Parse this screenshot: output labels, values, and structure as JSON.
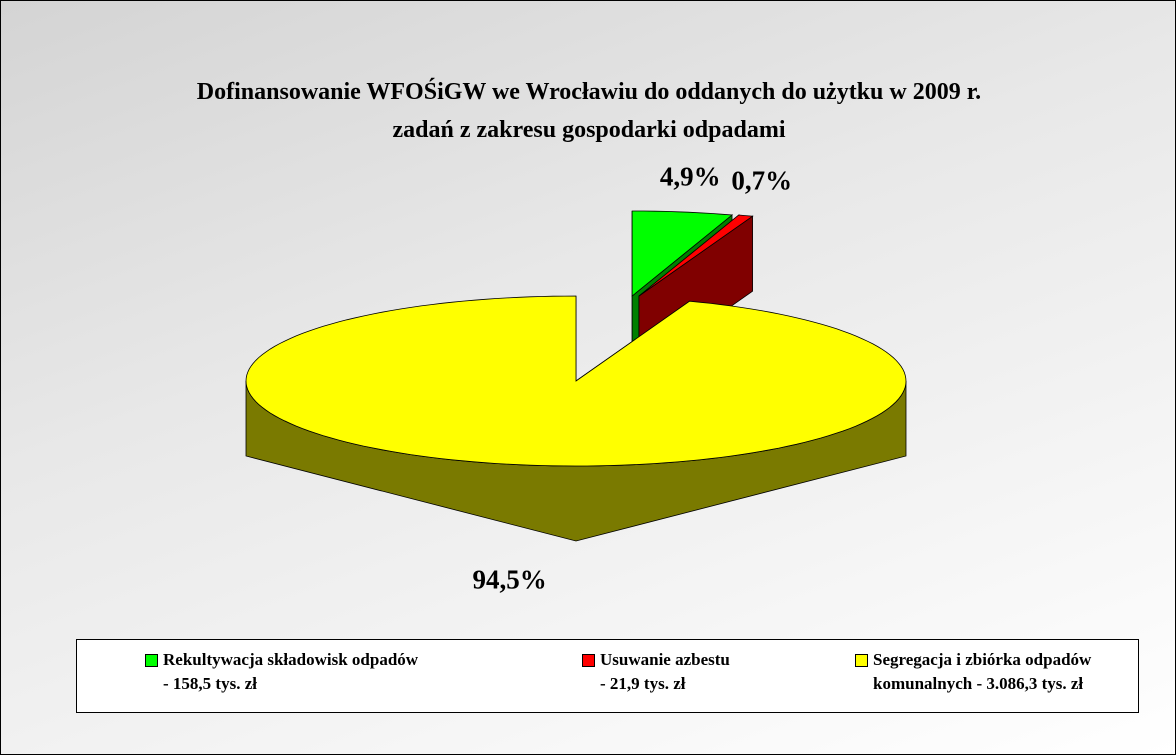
{
  "chart_data": {
    "type": "pie",
    "title": "Dofinansowanie WFOŚiGW we Wrocławiu do oddanych do użytku w 2009 r.\nzadań z zakresu gospodarki odpadami",
    "series": [
      {
        "name": "Rekultywacja składowisk odpadów\n- 158,5 tys. zł",
        "color": "#00ff00",
        "side_color": "#008000",
        "values": [
          4.9
        ],
        "value_labels": [
          "4,9%"
        ],
        "explode": true
      },
      {
        "name": "Usuwanie azbestu\n- 21,9 tys. zł",
        "color": "#ff0000",
        "side_color": "#800000",
        "values": [
          0.7
        ],
        "value_labels": [
          "0,7%"
        ],
        "explode": true
      },
      {
        "name": "Segregacja i zbiórka odpadów\nkomunalnych - 3.086,3 tys. zł",
        "color": "#ffff00",
        "side_color": "#7a7a00",
        "values": [
          94.5
        ],
        "value_labels": [
          "94,5%"
        ],
        "explode": false
      }
    ],
    "legend": "bottom"
  }
}
